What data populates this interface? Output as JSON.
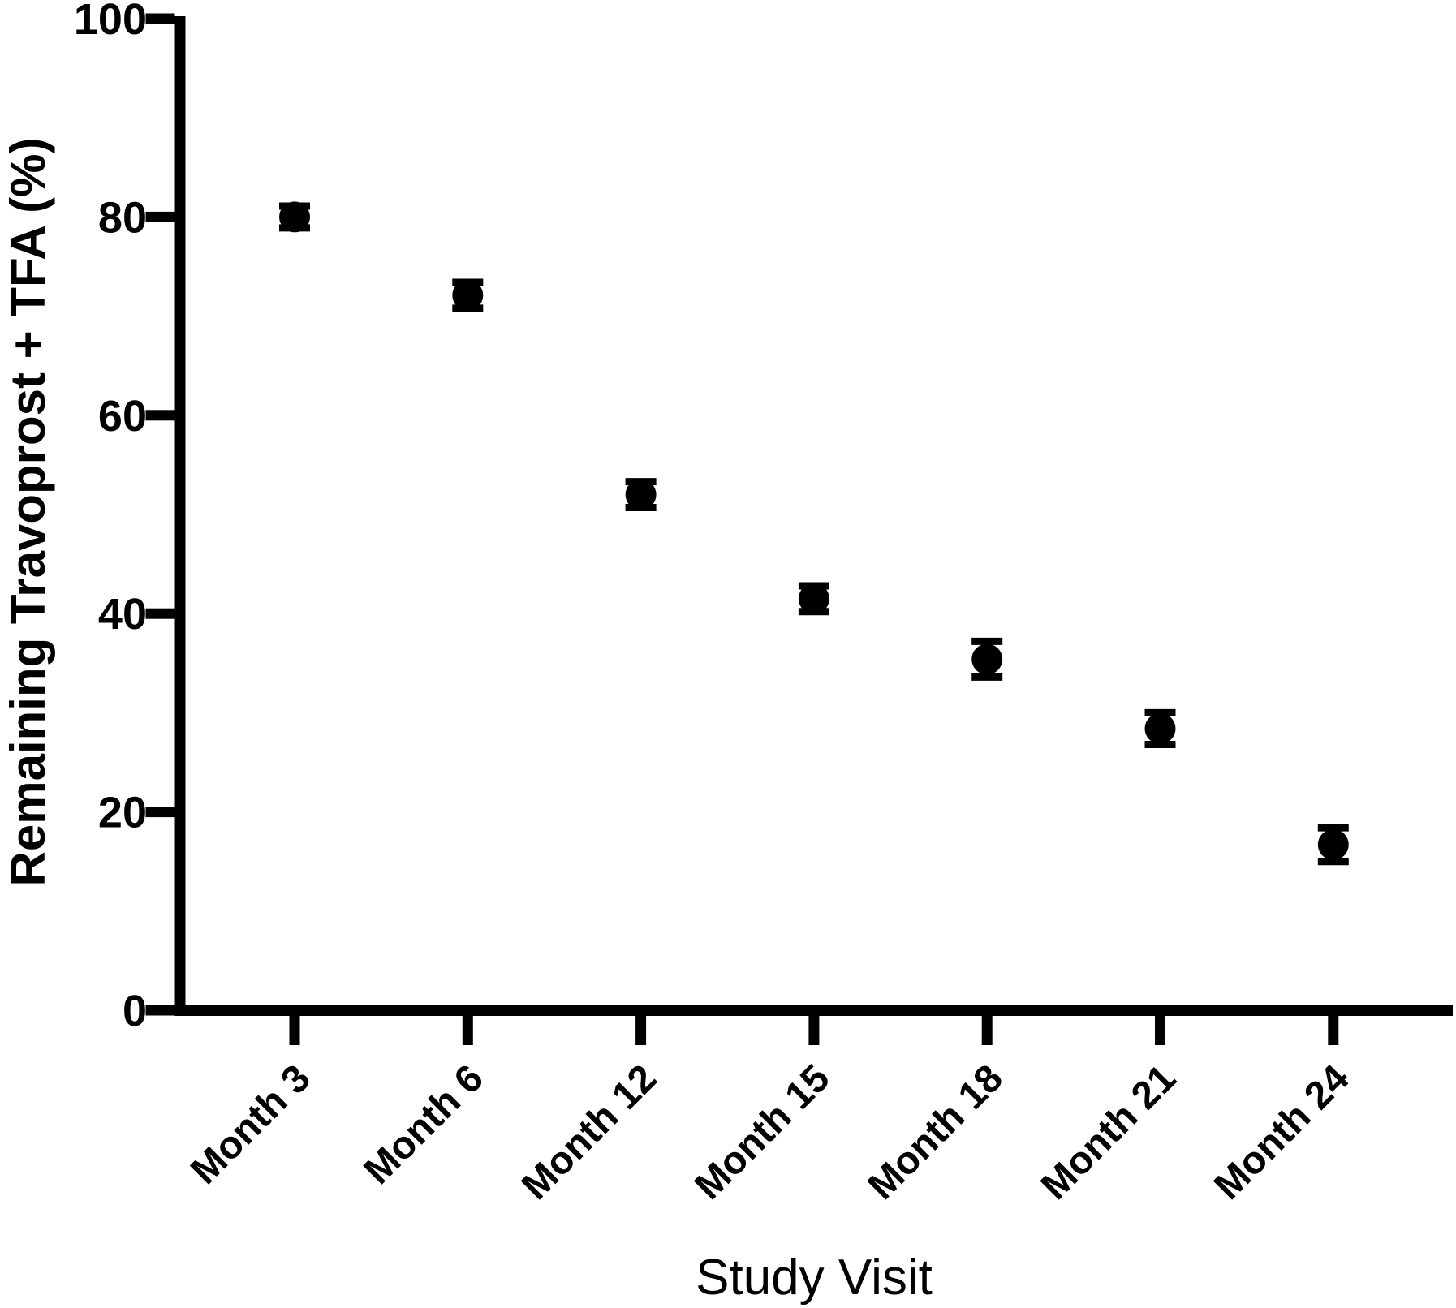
{
  "figure": {
    "background": "#ffffff",
    "ink": "#000000"
  },
  "chart_data": {
    "type": "scatter",
    "title": "",
    "xlabel": "Study Visit",
    "ylabel": "Remaining Travoprost + TFA (%)",
    "categories": [
      "Month 3",
      "Month 6",
      "Month 12",
      "Month 15",
      "Month 18",
      "Month 21",
      "Month 24"
    ],
    "series": [
      {
        "name": "Remaining Travoprost + TFA",
        "values": [
          80.0,
          72.1,
          52.0,
          41.5,
          35.4,
          28.4,
          16.7
        ],
        "errors": [
          1.1,
          1.3,
          1.3,
          1.3,
          1.8,
          1.6,
          1.7
        ]
      }
    ],
    "ylim": [
      0,
      100
    ],
    "yticks": [
      0,
      20,
      40,
      60,
      80,
      100
    ],
    "grid": false,
    "legend_position": "none",
    "marker": "filled-circle",
    "error_bars": "vertical-with-caps",
    "color": "#000000"
  }
}
